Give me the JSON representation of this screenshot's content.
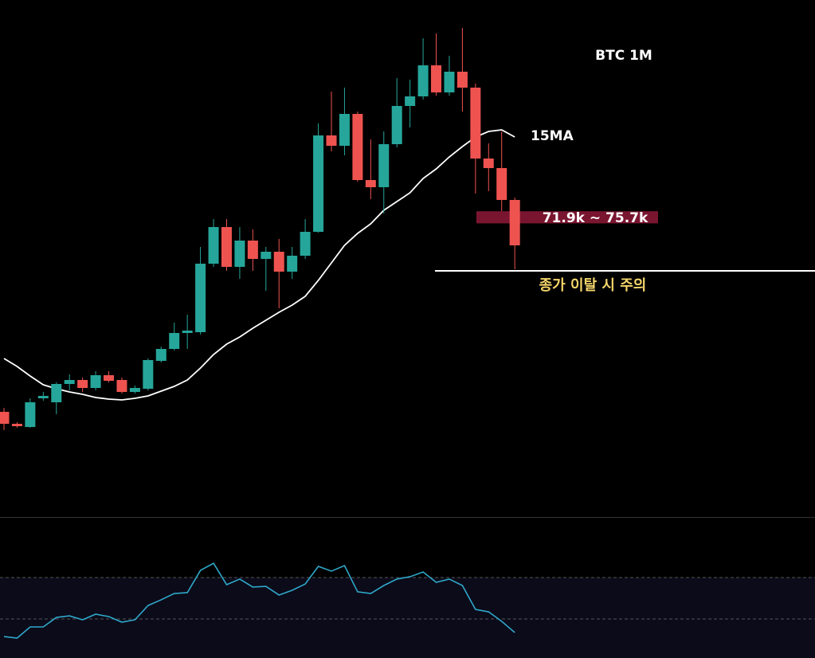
{
  "chart_data": {
    "type": "candlestick",
    "title": "BTC 1M",
    "up_color": "#26a69a",
    "down_color": "#ef5350",
    "open": [
      12.75,
      9,
      8,
      17,
      15.75,
      21.5,
      22.75,
      20.25,
      24.25,
      22.75,
      19,
      20,
      28.75,
      32.5,
      37.5,
      37.75,
      59.25,
      70.75,
      58.25,
      66.5,
      60.75,
      63,
      56.75,
      61.75,
      69.25,
      99.5,
      96.25,
      106.25,
      85.5,
      83.25,
      96.75,
      108.75,
      111.75,
      121.5,
      113,
      119.5,
      114.5,
      92.25,
      89.25,
      79.25
    ],
    "high": [
      14,
      9.5,
      17,
      19,
      22,
      24.5,
      23.5,
      25.5,
      25.5,
      23.5,
      21,
      29.5,
      33.25,
      40.75,
      43.25,
      64.5,
      73.25,
      73.25,
      70.75,
      70,
      64.5,
      67,
      64.5,
      73.25,
      103.25,
      113.25,
      114.5,
      107,
      98.25,
      100.75,
      117.5,
      117,
      130,
      131.5,
      124.5,
      133.25,
      115.75,
      97,
      100.75,
      80
    ],
    "low": [
      7,
      7.75,
      7.75,
      16.25,
      12,
      19.5,
      19,
      19.5,
      22,
      18.5,
      18.5,
      19.5,
      28.25,
      32,
      32.5,
      37,
      58.25,
      57,
      54.5,
      57,
      50.75,
      45.25,
      54.5,
      60.75,
      69,
      94.5,
      93.25,
      85,
      79.5,
      75,
      95.75,
      102,
      110.75,
      112,
      112,
      107,
      81.25,
      82,
      75.75,
      57.5
    ],
    "close": [
      9,
      8.25,
      15.75,
      17.75,
      21.5,
      22.75,
      20.25,
      24.25,
      22.5,
      19,
      20.25,
      29,
      32.5,
      37.5,
      38.25,
      59.25,
      70.75,
      58.25,
      66.5,
      60.75,
      63,
      56.75,
      61.75,
      69.25,
      99.5,
      96.25,
      106.25,
      85.5,
      83.25,
      96.75,
      108.75,
      111.75,
      121.5,
      113,
      119.5,
      114.5,
      92.25,
      89.25,
      79.25,
      65
    ],
    "ylim": [
      -20,
      142
    ],
    "ma": {
      "name": "15MA",
      "color": "#ffffff",
      "values": [
        29.5,
        27,
        24,
        21.25,
        20,
        19,
        18.25,
        17.25,
        16.75,
        16.5,
        17,
        17.75,
        19.25,
        20.75,
        22.75,
        26.5,
        30.75,
        34,
        36.25,
        39,
        41.5,
        44,
        46.25,
        49,
        54,
        59.5,
        65,
        68.75,
        71.75,
        76,
        78.75,
        81.5,
        86,
        89,
        92.75,
        96,
        99,
        100.75,
        101.25,
        99
      ]
    },
    "zone": {
      "label": "71.9k ~ 75.7k",
      "low": 71.9,
      "high": 75.7,
      "color": "#7a1530"
    },
    "level": {
      "label": "종가 이탈 시 주의",
      "value": 57,
      "color": "#ffffff",
      "label_color": "#f5d66b"
    },
    "rsi": {
      "color": "#2ea8c9",
      "ylim": [
        -7.7,
        127.7
      ],
      "bands": [
        70,
        30
      ],
      "values": [
        13,
        11.5,
        22.3,
        22.3,
        31.5,
        33,
        29.2,
        34.6,
        32.3,
        26.9,
        29.2,
        43,
        48.5,
        54.6,
        55.4,
        76.9,
        83.8,
        63.1,
        68.5,
        60.8,
        61.5,
        53.1,
        57.7,
        63.8,
        80.8,
        76.2,
        81.5,
        56.2,
        54.6,
        62.3,
        68.5,
        70.8,
        75.4,
        65.4,
        68.5,
        62.3,
        39.2,
        36.9,
        27.7,
        16.9
      ]
    }
  }
}
